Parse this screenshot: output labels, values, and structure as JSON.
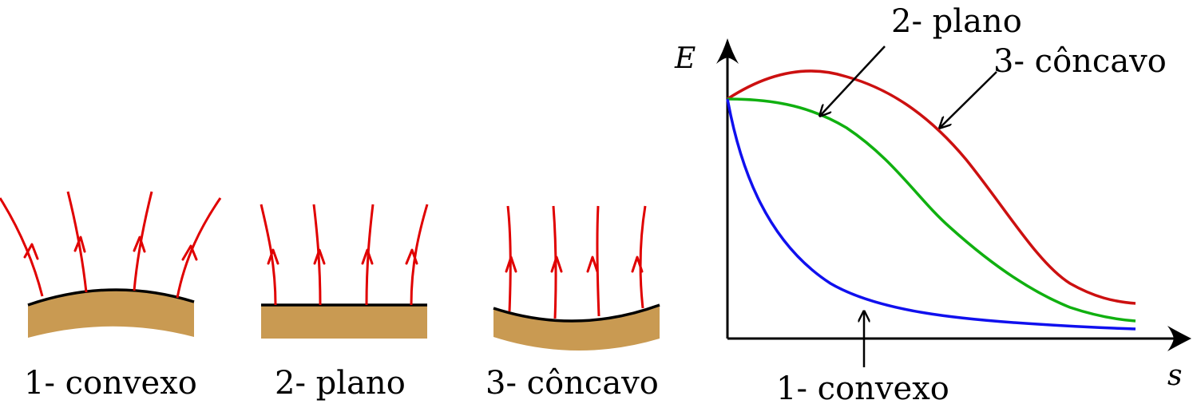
{
  "colors": {
    "field_lines": "#e00000",
    "conductor": "#c99a52",
    "convexo_curve": "#1010ee",
    "plano_curve": "#10b010",
    "concavo_curve": "#cc1010"
  },
  "surfaces": [
    {
      "id": "convexo",
      "label": "1- convexo"
    },
    {
      "id": "plano",
      "label": "2- plano"
    },
    {
      "id": "concavo",
      "label": "3- côncavo"
    }
  ],
  "graph": {
    "y_axis_label": "E",
    "x_axis_label": "s",
    "curve_labels": {
      "plano": "2- plano",
      "concavo": "3- côncavo",
      "convexo": "1- convexo"
    }
  }
}
